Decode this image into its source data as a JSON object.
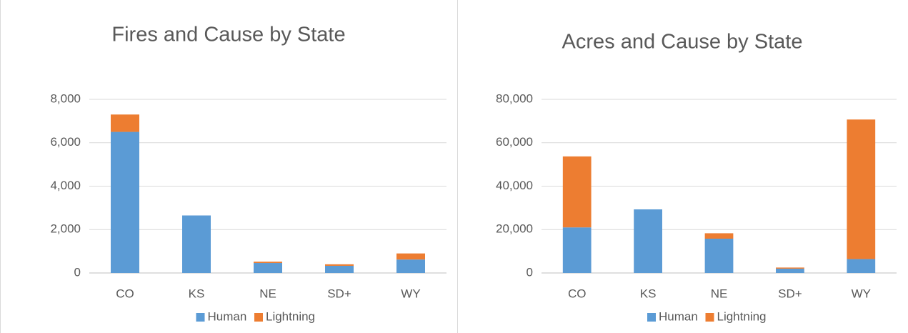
{
  "chart_data": [
    {
      "type": "bar",
      "stacked": true,
      "title": "Fires and Cause by State",
      "categories": [
        "CO",
        "KS",
        "NE",
        "SD+",
        "WY"
      ],
      "series": [
        {
          "name": "Human",
          "color": "#5b9bd5",
          "values": [
            6500,
            2650,
            460,
            330,
            620
          ]
        },
        {
          "name": "Lightning",
          "color": "#ed7d31",
          "values": [
            800,
            0,
            60,
            70,
            280
          ]
        }
      ],
      "ylim": [
        0,
        8000
      ],
      "yticks": [
        0,
        {
          "value": 2000,
          "label": "2,000"
        },
        {
          "value": 4000,
          "label": "4,000"
        },
        {
          "value": 6000,
          "label": "6,000"
        },
        {
          "value": 8000,
          "label": "8,000"
        }
      ],
      "grid": true,
      "legend": "bottom"
    },
    {
      "type": "bar",
      "stacked": true,
      "title": "Acres and Cause by State",
      "categories": [
        "CO",
        "KS",
        "NE",
        "SD+",
        "WY"
      ],
      "series": [
        {
          "name": "Human",
          "color": "#5b9bd5",
          "values": [
            21000,
            29300,
            15800,
            2000,
            6400
          ]
        },
        {
          "name": "Lightning",
          "color": "#ed7d31",
          "values": [
            32700,
            0,
            2500,
            500,
            64300
          ]
        }
      ],
      "ylim": [
        0,
        80000
      ],
      "yticks": [
        0,
        {
          "value": 20000,
          "label": "20,000"
        },
        {
          "value": 40000,
          "label": "40,000"
        },
        {
          "value": 60000,
          "label": "60,000"
        },
        {
          "value": 80000,
          "label": "80,000"
        }
      ],
      "grid": true,
      "legend": "bottom"
    }
  ]
}
